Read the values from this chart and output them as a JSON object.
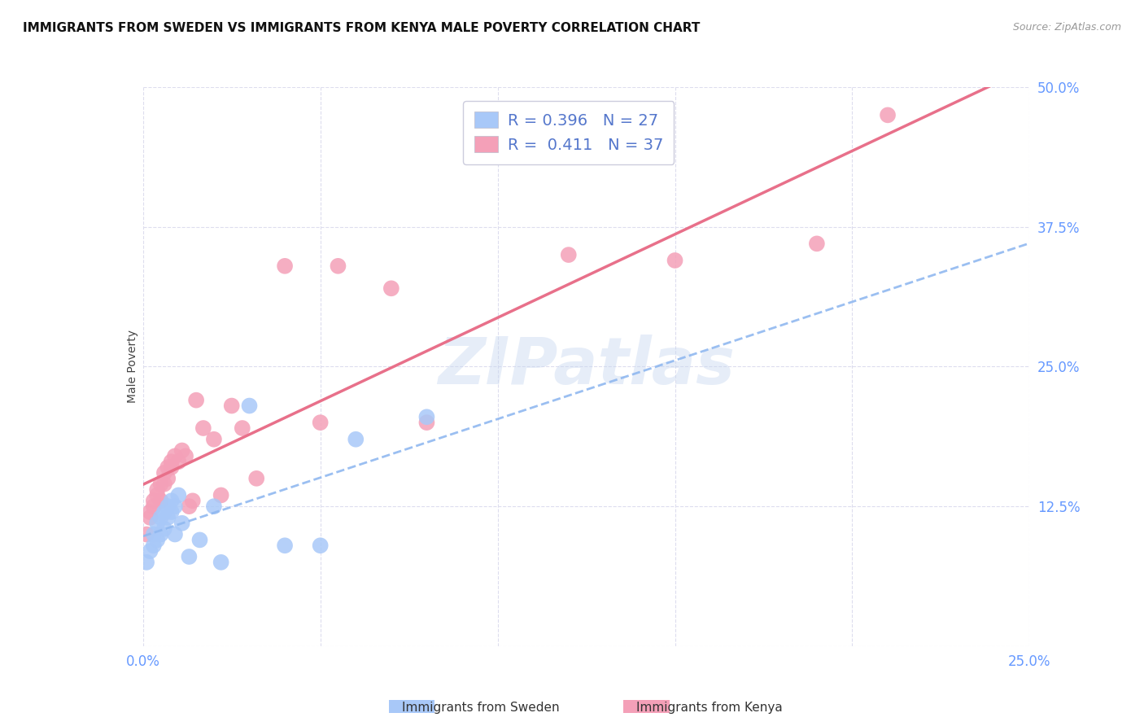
{
  "title": "IMMIGRANTS FROM SWEDEN VS IMMIGRANTS FROM KENYA MALE POVERTY CORRELATION CHART",
  "source": "Source: ZipAtlas.com",
  "ylabel": "Male Poverty",
  "xlim": [
    0.0,
    0.25
  ],
  "ylim": [
    0.0,
    0.5
  ],
  "xticks": [
    0.0,
    0.05,
    0.1,
    0.15,
    0.2,
    0.25
  ],
  "yticks": [
    0.0,
    0.125,
    0.25,
    0.375,
    0.5
  ],
  "xtick_labels": [
    "0.0%",
    "",
    "",
    "",
    "",
    "25.0%"
  ],
  "ytick_labels": [
    "",
    "12.5%",
    "25.0%",
    "37.5%",
    "50.0%"
  ],
  "sweden_color": "#a8c8f8",
  "kenya_color": "#f4a0b8",
  "sweden_line_color": "#90b8f0",
  "kenya_line_color": "#e8708a",
  "sweden_R": 0.396,
  "sweden_N": 27,
  "kenya_R": 0.411,
  "kenya_N": 37,
  "sweden_scatter_x": [
    0.001,
    0.002,
    0.003,
    0.003,
    0.004,
    0.004,
    0.005,
    0.005,
    0.006,
    0.006,
    0.007,
    0.007,
    0.008,
    0.008,
    0.009,
    0.009,
    0.01,
    0.011,
    0.013,
    0.016,
    0.02,
    0.022,
    0.03,
    0.04,
    0.05,
    0.06,
    0.08
  ],
  "sweden_scatter_y": [
    0.075,
    0.085,
    0.09,
    0.1,
    0.095,
    0.11,
    0.1,
    0.115,
    0.105,
    0.12,
    0.115,
    0.125,
    0.12,
    0.13,
    0.125,
    0.1,
    0.135,
    0.11,
    0.08,
    0.095,
    0.125,
    0.075,
    0.215,
    0.09,
    0.09,
    0.185,
    0.205
  ],
  "kenya_scatter_x": [
    0.001,
    0.002,
    0.002,
    0.003,
    0.003,
    0.004,
    0.004,
    0.005,
    0.005,
    0.006,
    0.006,
    0.007,
    0.007,
    0.008,
    0.008,
    0.009,
    0.01,
    0.011,
    0.012,
    0.013,
    0.014,
    0.015,
    0.017,
    0.02,
    0.022,
    0.025,
    0.028,
    0.032,
    0.04,
    0.05,
    0.055,
    0.07,
    0.08,
    0.12,
    0.15,
    0.19,
    0.21
  ],
  "kenya_scatter_y": [
    0.1,
    0.115,
    0.12,
    0.125,
    0.13,
    0.135,
    0.14,
    0.13,
    0.145,
    0.145,
    0.155,
    0.15,
    0.16,
    0.16,
    0.165,
    0.17,
    0.165,
    0.175,
    0.17,
    0.125,
    0.13,
    0.22,
    0.195,
    0.185,
    0.135,
    0.215,
    0.195,
    0.15,
    0.34,
    0.2,
    0.34,
    0.32,
    0.2,
    0.35,
    0.345,
    0.36,
    0.475
  ],
  "watermark": "ZIPatlas",
  "background_color": "#ffffff",
  "grid_color": "#ddddee",
  "title_fontsize": 11,
  "tick_label_color": "#6699ff",
  "legend_entry_1": "R = 0.396   N = 27",
  "legend_entry_2": "R =  0.411   N = 37",
  "bottom_legend_sweden": "Immigrants from Sweden",
  "bottom_legend_kenya": "Immigrants from Kenya"
}
